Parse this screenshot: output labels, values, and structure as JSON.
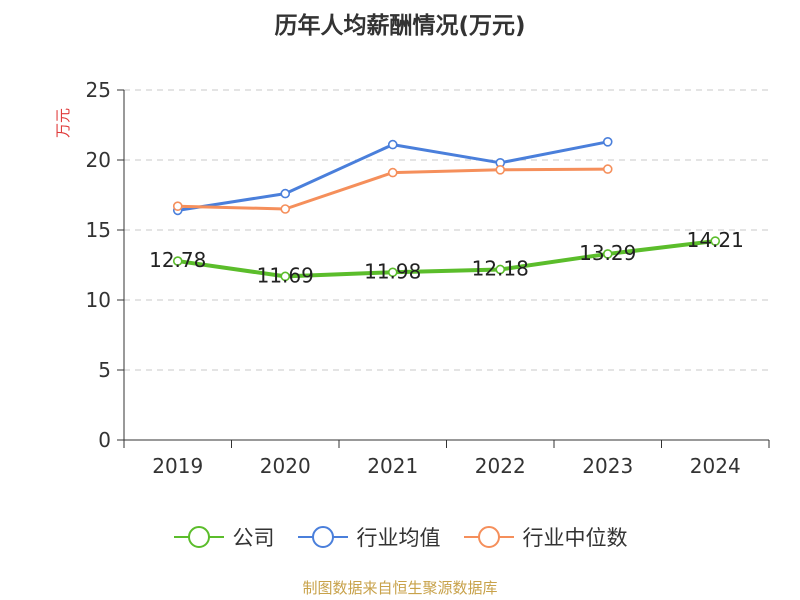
{
  "chart_data": {
    "type": "line",
    "title": "历年人均薪酬情况(万元)",
    "ylabel": "万元",
    "xlabel": "",
    "ylim": [
      0,
      25
    ],
    "yticks": [
      0,
      5,
      10,
      15,
      20,
      25
    ],
    "categories": [
      "2019",
      "2020",
      "2021",
      "2022",
      "2023",
      "2024"
    ],
    "grid": true,
    "legend_position": "bottom",
    "series": [
      {
        "name": "公司",
        "color": "#5bbd2b",
        "values": [
          12.78,
          11.69,
          11.98,
          12.18,
          13.29,
          14.21
        ],
        "data_labels": [
          "12.78",
          "11.69",
          "11.98",
          "12.18",
          "13.29",
          "14.21"
        ]
      },
      {
        "name": "行业均值",
        "color": "#4a7fdb",
        "values": [
          16.4,
          17.6,
          21.1,
          19.8,
          21.3,
          null
        ]
      },
      {
        "name": "行业中位数",
        "color": "#f58f5b",
        "values": [
          16.7,
          16.5,
          19.1,
          19.3,
          19.35,
          null
        ]
      }
    ]
  },
  "footer": {
    "source": "制图数据来自恒生聚源数据库"
  }
}
